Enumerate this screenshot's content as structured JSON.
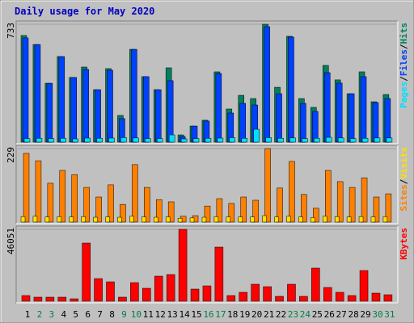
{
  "chart_data": [
    {
      "type": "bar",
      "title": "Daily usage for May 2020",
      "categories": [
        "1",
        "2",
        "3",
        "4",
        "5",
        "6",
        "7",
        "8",
        "9",
        "10",
        "11",
        "12",
        "13",
        "14",
        "15",
        "16",
        "17",
        "18",
        "19",
        "20",
        "21",
        "22",
        "23",
        "24",
        "25",
        "26",
        "27",
        "28",
        "29",
        "30",
        "31"
      ],
      "category_colors": [
        "#000000",
        "#008040",
        "#008040",
        "#000000",
        "#000000",
        "#000000",
        "#000000",
        "#000000",
        "#008040",
        "#008040",
        "#000000",
        "#000000",
        "#000000",
        "#000000",
        "#000000",
        "#008040",
        "#008040",
        "#000000",
        "#000000",
        "#000000",
        "#000000",
        "#000000",
        "#008040",
        "#008040",
        "#000000",
        "#000000",
        "#000000",
        "#000000",
        "#000000",
        "#008040",
        "#008040"
      ],
      "legend_separator": "/",
      "ylim": [
        0,
        733
      ],
      "yticks": [
        733
      ],
      "series": [
        {
          "name": "Pages",
          "color": "#00e0ff",
          "values": [
            22,
            24,
            22,
            24,
            20,
            25,
            24,
            25,
            28,
            26,
            22,
            22,
            45,
            20,
            22,
            24,
            25,
            28,
            24,
            80,
            28,
            24,
            26,
            22,
            24,
            30,
            26,
            22,
            24,
            26,
            26
          ]
        },
        {
          "name": "Files",
          "color": "#0040ff",
          "values": [
            648,
            607,
            366,
            532,
            402,
            452,
            326,
            447,
            146,
            577,
            407,
            326,
            382,
            35,
            100,
            131,
            427,
            181,
            241,
            231,
            718,
            301,
            653,
            241,
            191,
            432,
            367,
            301,
            407,
            246,
            271
          ]
        },
        {
          "name": "Hits",
          "color": "#00805c",
          "values": [
            663,
            607,
            366,
            532,
            402,
            467,
            326,
            457,
            166,
            577,
            407,
            326,
            462,
            45,
            100,
            136,
            437,
            206,
            291,
            271,
            733,
            341,
            658,
            271,
            216,
            477,
            387,
            301,
            437,
            251,
            296
          ]
        }
      ]
    },
    {
      "type": "bar",
      "legend_separator": "/",
      "ylim": [
        0,
        229
      ],
      "yticks": [
        229
      ],
      "series": [
        {
          "name": "Sites",
          "color": "#ff8000",
          "values": [
            214,
            191,
            121,
            161,
            148,
            108,
            78,
            116,
            55,
            179,
            108,
            70,
            63,
            18,
            20,
            50,
            73,
            58,
            78,
            68,
            229,
            106,
            189,
            86,
            43,
            161,
            126,
            108,
            138,
            78,
            88
          ]
        },
        {
          "name": "Visits",
          "color": "#ffe000",
          "values": [
            17,
            18,
            16,
            17,
            16,
            17,
            15,
            16,
            15,
            18,
            16,
            15,
            16,
            12,
            13,
            15,
            17,
            16,
            16,
            16,
            20,
            16,
            18,
            16,
            14,
            18,
            17,
            16,
            17,
            16,
            17
          ]
        }
      ]
    },
    {
      "type": "bar",
      "ylim": [
        0,
        46051
      ],
      "yticks": [
        46051
      ],
      "series": [
        {
          "name": "KBytes",
          "color": "#ff0000",
          "values": [
            3622,
            2587,
            2587,
            2587,
            1552,
            37254,
            14488,
            12418,
            2587,
            11901,
            8279,
            16040,
            17075,
            46051,
            7761,
            9831,
            34667,
            3622,
            5692,
            10866,
            9314,
            3105,
            10866,
            3105,
            21214,
            8797,
            5692,
            3622,
            19662,
            5174,
            4139
          ]
        }
      ]
    }
  ]
}
